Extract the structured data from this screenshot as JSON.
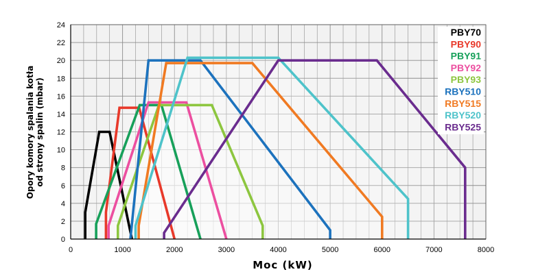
{
  "chart_data": {
    "type": "area",
    "title": "",
    "xlabel": "Moc (kW)",
    "ylabel": [
      "Opory komory spalania kotła",
      "od strony spalin (mbar)"
    ],
    "xlim": [
      0,
      8000
    ],
    "ylim": [
      0,
      24
    ],
    "x_ticks": [
      "0",
      "1000",
      "2000",
      "3000",
      "4000",
      "5000",
      "6000",
      "7000",
      "8000"
    ],
    "y_ticks": [
      "0",
      "2",
      "4",
      "6",
      "8",
      "10",
      "12",
      "14",
      "16",
      "18",
      "20",
      "22",
      "24"
    ],
    "grid": true,
    "legend_position": "top-right",
    "series": [
      {
        "name": "PBY70",
        "color": "#000000",
        "points": [
          [
            280,
            0
          ],
          [
            280,
            3
          ],
          [
            550,
            12
          ],
          [
            750,
            12
          ],
          [
            1180,
            0
          ]
        ]
      },
      {
        "name": "PBY90",
        "color": "#e8392a",
        "points": [
          [
            680,
            0
          ],
          [
            680,
            3
          ],
          [
            940,
            14.7
          ],
          [
            1320,
            14.7
          ],
          [
            2000,
            0
          ]
        ]
      },
      {
        "name": "PBY91",
        "color": "#17a05a",
        "points": [
          [
            490,
            0
          ],
          [
            490,
            1.7
          ],
          [
            1330,
            15
          ],
          [
            1750,
            15
          ],
          [
            2500,
            0
          ]
        ]
      },
      {
        "name": "PBY92",
        "color": "#ec4fa0",
        "points": [
          [
            730,
            0
          ],
          [
            730,
            1.5
          ],
          [
            1500,
            15.3
          ],
          [
            2230,
            15.3
          ],
          [
            3000,
            0
          ]
        ]
      },
      {
        "name": "PBY93",
        "color": "#8dc63f",
        "points": [
          [
            910,
            0
          ],
          [
            910,
            1.5
          ],
          [
            1700,
            15
          ],
          [
            2720,
            15
          ],
          [
            3700,
            1.5
          ],
          [
            3700,
            0
          ]
        ]
      },
      {
        "name": "RBY510",
        "color": "#1c72bd",
        "points": [
          [
            1150,
            0
          ],
          [
            1500,
            20
          ],
          [
            2500,
            20
          ],
          [
            5000,
            1
          ],
          [
            5000,
            0
          ]
        ]
      },
      {
        "name": "RBY515",
        "color": "#f07a22",
        "points": [
          [
            1310,
            0
          ],
          [
            1310,
            1.5
          ],
          [
            1840,
            19.7
          ],
          [
            3500,
            19.7
          ],
          [
            6000,
            2.5
          ],
          [
            6000,
            0
          ]
        ]
      },
      {
        "name": "RBY520",
        "color": "#4ec3ca",
        "points": [
          [
            1250,
            0
          ],
          [
            1250,
            1.5
          ],
          [
            2250,
            20.3
          ],
          [
            4000,
            20.3
          ],
          [
            6500,
            4.5
          ],
          [
            6500,
            0
          ]
        ]
      },
      {
        "name": "RBY525",
        "color": "#6a2c8e",
        "points": [
          [
            1800,
            0
          ],
          [
            1800,
            0.7
          ],
          [
            4000,
            20
          ],
          [
            5900,
            20
          ],
          [
            7600,
            8
          ],
          [
            7600,
            0
          ]
        ]
      }
    ]
  }
}
